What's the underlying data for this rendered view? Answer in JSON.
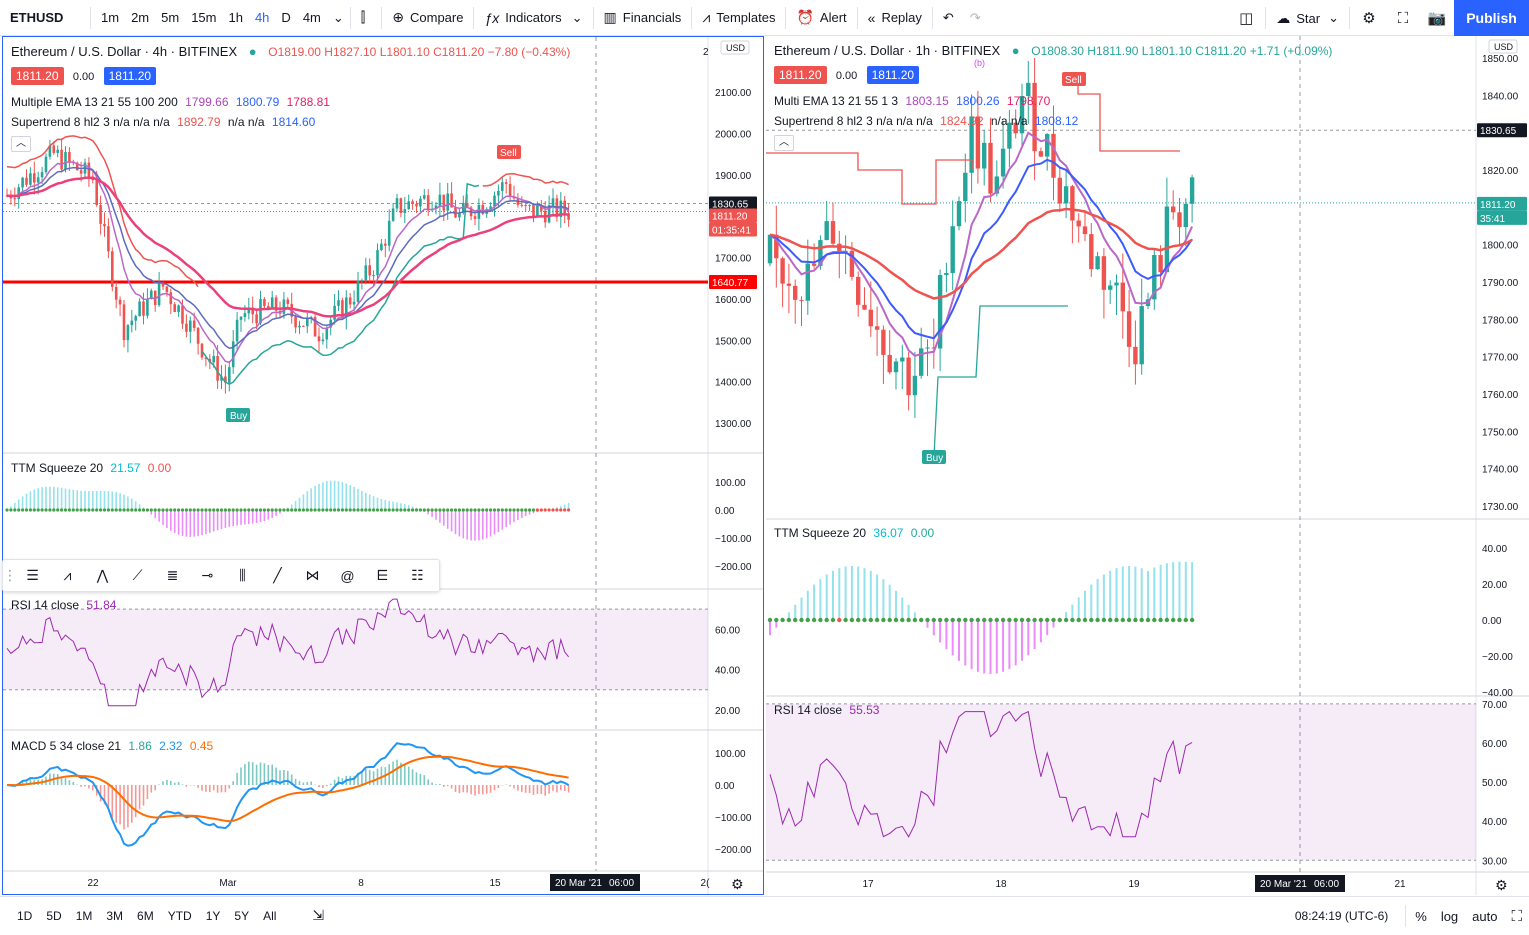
{
  "toolbar": {
    "symbol": "ETHUSD",
    "intervals": [
      "1m",
      "2m",
      "5m",
      "15m",
      "1h",
      "4h",
      "D",
      "4m"
    ],
    "active_interval": "4h",
    "compare": "Compare",
    "indicators": "Indicators",
    "financials": "Financials",
    "templates": "Templates",
    "alert": "Alert",
    "replay": "Replay",
    "star": "Star",
    "publish": "Publish"
  },
  "left_chart": {
    "title": "Ethereum / U.S. Dollar · 4h · BITFINEX",
    "ohlc": {
      "o": "O1819.00",
      "h": "H1827.10",
      "l": "L1801.10",
      "c": "C1811.20",
      "chg": "−7.80 (−0.43%)"
    },
    "bid": "1811.20",
    "spread": "0.00",
    "ask": "1811.20",
    "ema_label": "Multiple EMA 13 21 55 100 200",
    "ema_values": [
      "1799.66",
      "1800.79",
      "1788.81"
    ],
    "supertrend_label": "Supertrend 8 hl2 3  n/a n/a n/a",
    "supertrend_values": [
      "1892.79",
      "n/a n/a",
      "1814.60"
    ],
    "currency": "USD",
    "price_ticks": [
      "2100.00",
      "2000.00",
      "1900.00",
      "1700.00",
      "1600.00",
      "1500.00",
      "1400.00",
      "1300.00"
    ],
    "tick_top": "2",
    "price_badge_1": "1830.65",
    "price_badge_2": "1811.20",
    "price_badge_timer": "01:35:41",
    "price_badge_red": "1640.77",
    "ttm_label": "TTM Squeeze 20",
    "ttm_v1": "21.57",
    "ttm_v2": "0.00",
    "ttm_ticks": [
      "100.00",
      "0.00",
      "−100.00",
      "−200.00"
    ],
    "rsi_label": "RSI 14 close",
    "rsi_value": "51.84",
    "rsi_ticks": [
      "60.00",
      "40.00",
      "20.00"
    ],
    "macd_label": "MACD 5 34 close 21",
    "macd_v1": "1.86",
    "macd_v2": "2.32",
    "macd_v3": "0.45",
    "macd_ticks": [
      "100.00",
      "0.00",
      "−100.00",
      "−200.00"
    ],
    "time_labels": [
      "22",
      "Mar",
      "8",
      "15",
      "2("
    ],
    "cursor_date": "20 Mar '21",
    "cursor_time": "06:00",
    "sell": "Sell",
    "buy": "Buy"
  },
  "right_chart": {
    "title": "Ethereum / U.S. Dollar · 1h · BITFINEX",
    "ohlc": {
      "o": "O1808.30",
      "h": "H1811.90",
      "l": "L1801.10",
      "c": "C1811.20",
      "chg": "+1.71 (+0.09%)"
    },
    "bid": "1811.20",
    "spread": "0.00",
    "ask": "1811.20",
    "ema_label": "Multi EMA 13 21 55 1 3",
    "ema_values": [
      "1803.15",
      "1800.26",
      "1798.70"
    ],
    "supertrend_label": "Supertrend 8 hl2 3  n/a n/a n/a",
    "supertrend_values": [
      "1824.92",
      "n/a n/a",
      "1808.12"
    ],
    "currency": "USD",
    "price_ticks": [
      "1850.00",
      "1840.00",
      "1820.00",
      "1800.00",
      "1790.00",
      "1780.00",
      "1770.00",
      "1760.00",
      "1750.00",
      "1740.00",
      "1730.00"
    ],
    "price_badge_1": "1830.65",
    "price_badge_2": "1811.20",
    "price_badge_timer": "35:41",
    "ttm_label": "TTM Squeeze 20",
    "ttm_v1": "36.07",
    "ttm_v2": "0.00",
    "ttm_ticks": [
      "40.00",
      "20.00",
      "0.00",
      "−20.00",
      "−40.00"
    ],
    "rsi_label": "RSI 14 close",
    "rsi_value": "55.53",
    "rsi_ticks": [
      "70.00",
      "60.00",
      "50.00",
      "40.00",
      "30.00"
    ],
    "time_labels": [
      "17",
      "18",
      "19",
      "21"
    ],
    "cursor_date": "20 Mar '21",
    "cursor_time": "06:00",
    "sell": "Sell",
    "buy": "Buy",
    "wave_b": "(b)"
  },
  "bottombar": {
    "ranges": [
      "1D",
      "5D",
      "1M",
      "3M",
      "6M",
      "YTD",
      "1Y",
      "5Y",
      "All"
    ],
    "clock": "08:24:19 (UTC-6)",
    "percent": "%",
    "log": "log",
    "auto": "auto"
  },
  "colors": {
    "accent": "#2962ff",
    "up": "#26a69a",
    "down": "#ef5350",
    "red_line": "#ff0000"
  }
}
